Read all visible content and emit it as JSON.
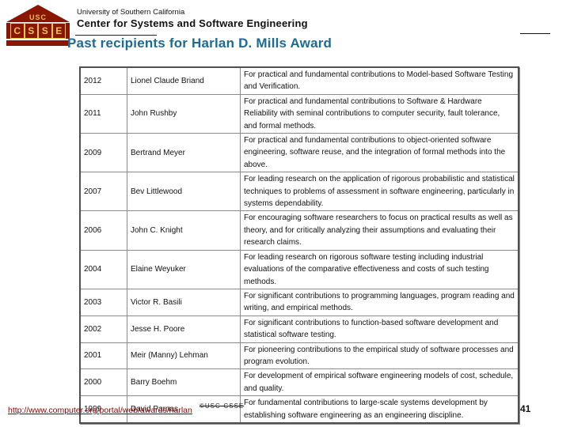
{
  "header": {
    "university": "University of Southern California",
    "center": "Center for Systems and Software Engineering"
  },
  "logo": {
    "usc": "USC",
    "letters": [
      "C",
      "S",
      "S",
      "E"
    ]
  },
  "title": "Past recipients for Harlan D. Mills Award",
  "table": {
    "rows": [
      {
        "year": "2012",
        "name": "Lionel Claude Briand",
        "citation": "For practical and fundamental contributions to Model-based Software Testing and Verification."
      },
      {
        "year": "2011",
        "name": "John Rushby",
        "citation": "For practical and fundamental contributions to Software & Hardware Reliability with seminal contributions to computer security, fault tolerance, and formal methods."
      },
      {
        "year": "2009",
        "name": "Bertrand Meyer",
        "citation": "For practical and fundamental contributions to object-oriented software engineering, software reuse, and the integration of formal methods into the above."
      },
      {
        "year": "2007",
        "name": "Bev Littlewood",
        "citation": "For leading research on the application of rigorous probabilistic and statistical techniques to problems of assessment in software engineering, particularly in systems dependability."
      },
      {
        "year": "2006",
        "name": "John C. Knight",
        "citation": "For encouraging software researchers to focus on practical results as well as theory, and for critically analyzing their assumptions and evaluating their research claims."
      },
      {
        "year": "2004",
        "name": "Elaine Weyuker",
        "citation": "For leading research on rigorous software testing including industrial evaluations of the comparative effectiveness and costs of such testing methods."
      },
      {
        "year": "2003",
        "name": "Victor R. Basili",
        "citation": "For significant contributions to programming languages, program reading and writing, and empirical methods."
      },
      {
        "year": "2002",
        "name": "Jesse H. Poore",
        "citation": "For significant contributions to function-based software development and statistical software testing."
      },
      {
        "year": "2001",
        "name": "Meir (Manny) Lehman",
        "citation": "For pioneering contributions to the empirical study of software processes and program evolution."
      },
      {
        "year": "2000",
        "name": "Barry Boehm",
        "citation": "For development of empirical software engineering models of cost, schedule, and quality."
      },
      {
        "year": "1999",
        "name": "David Parnas",
        "citation": "For fundamental contributions to large-scale systems development by establishing software engineering as an engineering discipline."
      }
    ]
  },
  "footer": {
    "url": "http://www.computer.org/portal/web/awards/harlan",
    "copyright": "©USC-CSSE",
    "page_number": "41"
  },
  "colors": {
    "usc_cardinal": "#8a1602",
    "usc_gold": "#eac552",
    "title_teal": "#1b6b95",
    "name_navy": "#20208f",
    "link_dark_red": "#8b0000"
  }
}
